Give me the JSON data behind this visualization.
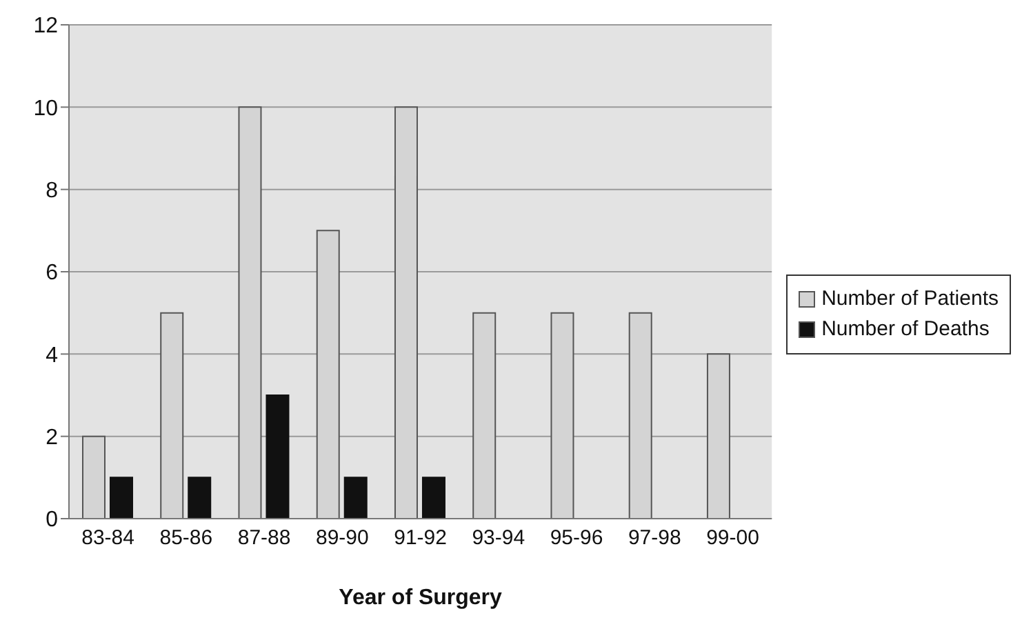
{
  "chart_data": {
    "type": "bar",
    "xlabel": "Year of Surgery",
    "categories": [
      "83-84",
      "85-86",
      "87-88",
      "89-90",
      "91-92",
      "93-94",
      "95-96",
      "97-98",
      "99-00"
    ],
    "series": [
      {
        "name": "Number of Patients",
        "color": "#d4d4d4",
        "values": [
          2,
          5,
          10,
          7,
          10,
          5,
          5,
          5,
          4
        ]
      },
      {
        "name": "Number of Deaths",
        "color": "#111111",
        "values": [
          1,
          1,
          3,
          1,
          1,
          null,
          null,
          null,
          null
        ]
      }
    ],
    "ylim": [
      0,
      12
    ],
    "yticks": [
      0,
      2,
      4,
      6,
      8,
      10,
      12
    ],
    "grid": "y",
    "legend": "right"
  }
}
